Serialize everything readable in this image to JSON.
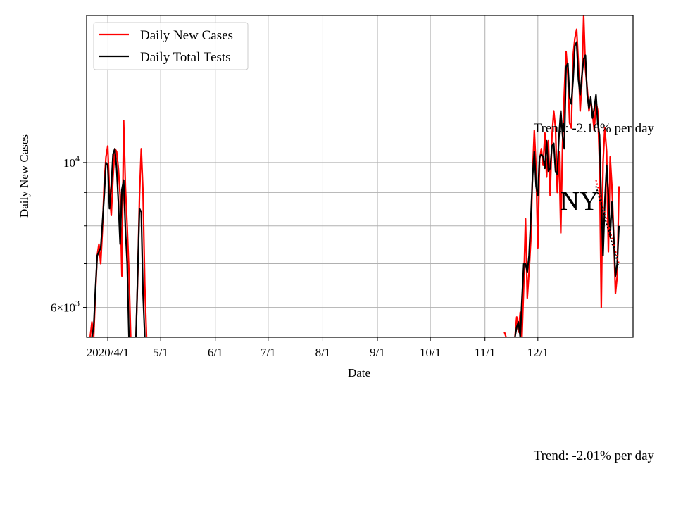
{
  "chart_data": {
    "type": "line",
    "title": "",
    "xlabel": "Date",
    "ylabel": "Daily New Cases",
    "y_scale": "log",
    "ylim": [
      5400,
      16800
    ],
    "xlim": [
      "2020-03-20",
      "2021-01-24"
    ],
    "grid": true,
    "legend_position": "upper left",
    "x_ticks": [
      {
        "date": "2020-04-01",
        "label": "2020/4/1"
      },
      {
        "date": "2020-05-01",
        "label": "5/1"
      },
      {
        "date": "2020-06-01",
        "label": "6/1"
      },
      {
        "date": "2020-07-01",
        "label": "7/1"
      },
      {
        "date": "2020-08-01",
        "label": "8/1"
      },
      {
        "date": "2020-09-01",
        "label": "9/1"
      },
      {
        "date": "2020-10-01",
        "label": "10/1"
      },
      {
        "date": "2020-11-01",
        "label": "11/1"
      },
      {
        "date": "2020-12-01",
        "label": "12/1"
      }
    ],
    "y_major_ticks": [
      {
        "value": 6000,
        "label_base": "6×10",
        "label_exp": "3"
      },
      {
        "value": 10000,
        "label_base": "10",
        "label_exp": "4"
      }
    ],
    "y_minor_ticks": [
      7000,
      8000,
      9000
    ],
    "series": [
      {
        "name": "Daily New Cases",
        "color": "#ff0000",
        "segments": [
          [
            [
              "2020-03-22",
              5400
            ],
            [
              "2020-03-23",
              5700
            ],
            [
              "2020-03-24",
              5400
            ],
            [
              "2020-03-25",
              6300
            ],
            [
              "2020-03-26",
              7200
            ],
            [
              "2020-03-27",
              7500
            ],
            [
              "2020-03-28",
              7000
            ],
            [
              "2020-03-29",
              7900
            ],
            [
              "2020-03-30",
              9300
            ],
            [
              "2020-03-31",
              10200
            ],
            [
              "2020-04-01",
              10600
            ],
            [
              "2020-04-02",
              9000
            ],
            [
              "2020-04-03",
              8300
            ],
            [
              "2020-04-04",
              9500
            ],
            [
              "2020-04-05",
              10500
            ],
            [
              "2020-04-06",
              10400
            ],
            [
              "2020-04-07",
              9800
            ],
            [
              "2020-04-08",
              8900
            ],
            [
              "2020-04-09",
              6700
            ],
            [
              "2020-04-10",
              11600
            ],
            [
              "2020-04-11",
              9200
            ],
            [
              "2020-04-12",
              8000
            ],
            [
              "2020-04-13",
              6800
            ],
            [
              "2020-04-14",
              5400
            ]
          ],
          [
            [
              "2020-04-17",
              5400
            ],
            [
              "2020-04-18",
              6700
            ],
            [
              "2020-04-19",
              8900
            ],
            [
              "2020-04-20",
              10500
            ],
            [
              "2020-04-21",
              9000
            ],
            [
              "2020-04-22",
              6500
            ],
            [
              "2020-04-23",
              5400
            ]
          ],
          [
            [
              "2020-11-12",
              5500
            ],
            [
              "2020-11-13",
              5400
            ]
          ],
          [
            [
              "2020-11-18",
              5400
            ],
            [
              "2020-11-19",
              5800
            ],
            [
              "2020-11-20",
              5500
            ],
            [
              "2020-11-21",
              5900
            ],
            [
              "2020-11-22",
              5400
            ],
            [
              "2020-11-23",
              6500
            ],
            [
              "2020-11-24",
              8200
            ],
            [
              "2020-11-25",
              6200
            ],
            [
              "2020-11-26",
              6800
            ],
            [
              "2020-11-27",
              7600
            ],
            [
              "2020-11-28",
              9600
            ],
            [
              "2020-11-29",
              11200
            ],
            [
              "2020-11-30",
              9800
            ],
            [
              "2020-12-01",
              7400
            ],
            [
              "2020-12-02",
              10100
            ],
            [
              "2020-12-03",
              10500
            ],
            [
              "2020-12-04",
              9900
            ],
            [
              "2020-12-05",
              11100
            ],
            [
              "2020-12-06",
              9500
            ],
            [
              "2020-12-07",
              10800
            ],
            [
              "2020-12-08",
              8900
            ],
            [
              "2020-12-09",
              11000
            ],
            [
              "2020-12-10",
              12000
            ],
            [
              "2020-12-11",
              11300
            ],
            [
              "2020-12-12",
              9000
            ],
            [
              "2020-12-13",
              10400
            ],
            [
              "2020-12-14",
              7800
            ],
            [
              "2020-12-15",
              10700
            ],
            [
              "2020-12-16",
              12800
            ],
            [
              "2020-12-17",
              14800
            ],
            [
              "2020-12-18",
              13600
            ],
            [
              "2020-12-19",
              11500
            ],
            [
              "2020-12-20",
              11300
            ],
            [
              "2020-12-21",
              14600
            ],
            [
              "2020-12-22",
              15500
            ],
            [
              "2020-12-23",
              16000
            ],
            [
              "2020-12-24",
              14200
            ],
            [
              "2020-12-25",
              12000
            ],
            [
              "2020-12-26",
              13300
            ],
            [
              "2020-12-27",
              16800
            ],
            [
              "2020-12-28",
              13900
            ],
            [
              "2020-12-29",
              13000
            ],
            [
              "2020-12-30",
              12000
            ],
            [
              "2020-12-31",
              12500
            ],
            [
              "2021-01-01",
              11900
            ],
            [
              "2021-01-02",
              11200
            ],
            [
              "2021-01-03",
              12400
            ],
            [
              "2021-01-04",
              12000
            ],
            [
              "2021-01-05",
              10000
            ],
            [
              "2021-01-06",
              6000
            ],
            [
              "2021-01-07",
              10000
            ],
            [
              "2021-01-08",
              11300
            ],
            [
              "2021-01-09",
              10400
            ],
            [
              "2021-01-10",
              7300
            ],
            [
              "2021-01-11",
              10200
            ],
            [
              "2021-01-12",
              9200
            ],
            [
              "2021-01-13",
              7800
            ],
            [
              "2021-01-14",
              6300
            ],
            [
              "2021-01-15",
              6700
            ],
            [
              "2021-01-16",
              9200
            ]
          ]
        ]
      },
      {
        "name": "Daily Total Tests",
        "color": "#000000",
        "segments": [
          [
            [
              "2020-03-23",
              5400
            ],
            [
              "2020-03-24",
              5600
            ],
            [
              "2020-03-25",
              6400
            ],
            [
              "2020-03-26",
              7200
            ],
            [
              "2020-03-27",
              7300
            ],
            [
              "2020-03-28",
              7400
            ],
            [
              "2020-03-29",
              8100
            ],
            [
              "2020-03-30",
              8900
            ],
            [
              "2020-03-31",
              10000
            ],
            [
              "2020-04-01",
              9900
            ],
            [
              "2020-04-02",
              8500
            ],
            [
              "2020-04-03",
              9200
            ],
            [
              "2020-04-04",
              10300
            ],
            [
              "2020-04-05",
              10500
            ],
            [
              "2020-04-06",
              9800
            ],
            [
              "2020-04-07",
              8700
            ],
            [
              "2020-04-08",
              7500
            ],
            [
              "2020-04-09",
              9100
            ],
            [
              "2020-04-10",
              9400
            ],
            [
              "2020-04-11",
              7900
            ],
            [
              "2020-04-12",
              7000
            ],
            [
              "2020-04-13",
              5400
            ]
          ],
          [
            [
              "2020-04-17",
              5400
            ],
            [
              "2020-04-18",
              6800
            ],
            [
              "2020-04-19",
              8500
            ],
            [
              "2020-04-20",
              8400
            ],
            [
              "2020-04-21",
              6300
            ],
            [
              "2020-04-22",
              5400
            ]
          ],
          [
            [
              "2020-11-18",
              5400
            ],
            [
              "2020-11-19",
              5600
            ],
            [
              "2020-11-20",
              5700
            ],
            [
              "2020-11-21",
              5400
            ],
            [
              "2020-11-22",
              6200
            ],
            [
              "2020-11-23",
              7000
            ],
            [
              "2020-11-24",
              7000
            ],
            [
              "2020-11-25",
              6800
            ],
            [
              "2020-11-26",
              7200
            ],
            [
              "2020-11-27",
              8200
            ],
            [
              "2020-11-28",
              9500
            ],
            [
              "2020-11-29",
              10400
            ],
            [
              "2020-11-30",
              9200
            ],
            [
              "2020-12-01",
              8900
            ],
            [
              "2020-12-02",
              10200
            ],
            [
              "2020-12-03",
              10300
            ],
            [
              "2020-12-04",
              10200
            ],
            [
              "2020-12-05",
              9800
            ],
            [
              "2020-12-06",
              10800
            ],
            [
              "2020-12-07",
              9700
            ],
            [
              "2020-12-08",
              9800
            ],
            [
              "2020-12-09",
              10600
            ],
            [
              "2020-12-10",
              10700
            ],
            [
              "2020-12-11",
              9700
            ],
            [
              "2020-12-12",
              9600
            ],
            [
              "2020-12-13",
              11000
            ],
            [
              "2020-12-14",
              12000
            ],
            [
              "2020-12-15",
              11000
            ],
            [
              "2020-12-16",
              10500
            ],
            [
              "2020-12-17",
              14000
            ],
            [
              "2020-12-18",
              14200
            ],
            [
              "2020-12-19",
              12600
            ],
            [
              "2020-12-20",
              12300
            ],
            [
              "2020-12-21",
              13400
            ],
            [
              "2020-12-22",
              15100
            ],
            [
              "2020-12-23",
              15300
            ],
            [
              "2020-12-24",
              13400
            ],
            [
              "2020-12-25",
              12700
            ],
            [
              "2020-12-26",
              13600
            ],
            [
              "2020-12-27",
              14400
            ],
            [
              "2020-12-28",
              14600
            ],
            [
              "2020-12-29",
              12700
            ],
            [
              "2020-12-30",
              12100
            ],
            [
              "2020-12-31",
              12600
            ],
            [
              "2021-01-01",
              11700
            ],
            [
              "2021-01-02",
              12100
            ],
            [
              "2021-01-03",
              12700
            ],
            [
              "2021-01-04",
              11500
            ],
            [
              "2021-01-05",
              11000
            ],
            [
              "2021-01-06",
              8700
            ],
            [
              "2021-01-07",
              7200
            ],
            [
              "2021-01-08",
              8700
            ],
            [
              "2021-01-09",
              9900
            ],
            [
              "2021-01-10",
              8900
            ],
            [
              "2021-01-11",
              7700
            ],
            [
              "2021-01-12",
              8700
            ],
            [
              "2021-01-13",
              7700
            ],
            [
              "2021-01-14",
              6700
            ],
            [
              "2021-01-15",
              7000
            ],
            [
              "2021-01-16",
              8000
            ]
          ]
        ]
      }
    ],
    "trend_lines": [
      {
        "color": "#ff0000",
        "dash": "dotted",
        "points": [
          [
            "2021-01-03",
            9400
          ],
          [
            "2021-01-16",
            7000
          ]
        ]
      },
      {
        "color": "#000000",
        "dash": "dotted",
        "points": [
          [
            "2021-01-03",
            9200
          ],
          [
            "2021-01-16",
            6900
          ]
        ]
      }
    ],
    "annotations": {
      "trend_upper": "Trend: -2.16% per day",
      "trend_lower": "Trend: -2.01% per day",
      "state": "NY"
    }
  }
}
